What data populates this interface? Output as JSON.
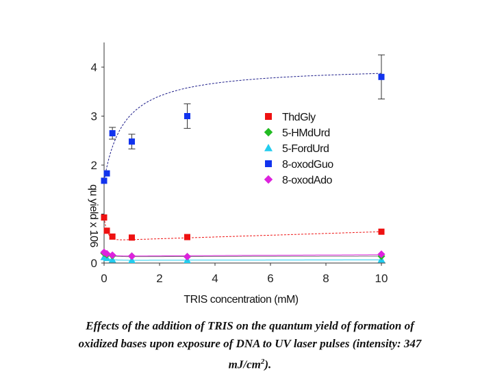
{
  "chart_data": {
    "type": "scatter",
    "xlabel": "TRIS concentration (mM)",
    "ylabel": "qu yield x 106",
    "xlim": [
      0,
      10
    ],
    "ylim": [
      0,
      4
    ],
    "xticks": [
      0,
      2,
      4,
      6,
      8,
      10
    ],
    "yticks": [
      0,
      1,
      2,
      3,
      4
    ],
    "ytick_labels": [
      "0",
      "",
      "2",
      "3",
      "4"
    ],
    "grid": false,
    "legend_position": "right",
    "series": [
      {
        "name": "ThdGly",
        "color": "#ee1111",
        "marker": "square",
        "x": [
          0,
          0.1,
          0.3,
          1,
          3,
          10
        ],
        "y": [
          0.93,
          0.66,
          0.54,
          0.52,
          0.53,
          0.64
        ],
        "fit_color": "#ee1111"
      },
      {
        "name": "5-HMdUrd",
        "color": "#22bb22",
        "marker": "diamond",
        "x": [
          0,
          0.1,
          0.3,
          1,
          3,
          10
        ],
        "y": [
          0.2,
          0.17,
          0.15,
          0.14,
          0.13,
          0.14
        ],
        "fit_color": "#777777"
      },
      {
        "name": "5-FordUrd",
        "color": "#22ccee",
        "marker": "triangle",
        "x": [
          0,
          0.1,
          0.3,
          1,
          3,
          10
        ],
        "y": [
          0.12,
          0.1,
          0.07,
          0.06,
          0.06,
          0.07
        ],
        "fit_color": "#22ccee"
      },
      {
        "name": "8-oxodGuo",
        "color": "#1133ee",
        "marker": "square",
        "x": [
          0,
          0.1,
          0.3,
          1,
          3,
          10
        ],
        "y": [
          1.68,
          1.83,
          2.65,
          2.48,
          3.0,
          3.8
        ],
        "err": [
          0,
          0,
          0.12,
          0.15,
          0.25,
          0.45
        ],
        "fit_color": "#1a1a88"
      },
      {
        "name": "8-oxodAdo",
        "color": "#dd22dd",
        "marker": "diamond",
        "x": [
          0,
          0.1,
          0.3,
          1,
          3,
          10
        ],
        "y": [
          0.22,
          0.19,
          0.16,
          0.14,
          0.13,
          0.18
        ],
        "fit_color": "#dd22dd"
      }
    ]
  },
  "caption": {
    "line1": "Effects of the addition of TRIS on the quantum yield of formation of",
    "line2": "oxidized bases upon exposure of DNA to UV laser pulses  (intensity: 347",
    "line3_pre": "mJ/cm",
    "line3_sup": "2",
    "line3_post": ")."
  }
}
